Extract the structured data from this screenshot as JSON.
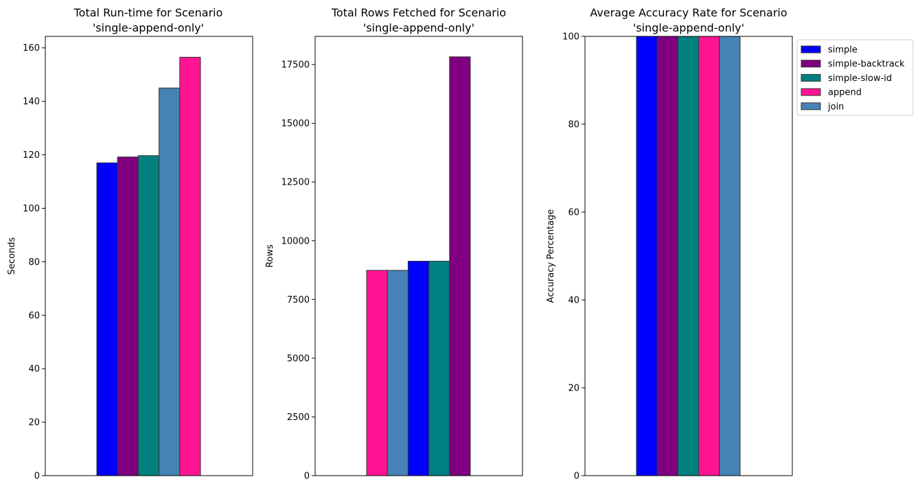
{
  "colors": {
    "simple": "#0000FF",
    "simple-backtrack": "#800080",
    "simple-slow-id": "#008080",
    "append": "#FF1493",
    "join": "#4682B4"
  },
  "chart_data": [
    {
      "type": "bar",
      "title": "Total Run-time for Scenario\n'single-append-only'",
      "title_lines": [
        "Total Run-time for Scenario",
        "'single-append-only'"
      ],
      "xlabel": "",
      "ylabel": "Seconds",
      "ylim": [
        0,
        164.3
      ],
      "yticks": [
        0,
        20,
        40,
        60,
        80,
        100,
        120,
        140,
        160
      ],
      "ytick_labels": [
        "0",
        "20",
        "40",
        "60",
        "80",
        "100",
        "120",
        "140",
        "160"
      ],
      "bars": [
        {
          "series": "simple",
          "value": 117.0
        },
        {
          "series": "simple-backtrack",
          "value": 119.2
        },
        {
          "series": "simple-slow-id",
          "value": 119.7
        },
        {
          "series": "join",
          "value": 145.0
        },
        {
          "series": "append",
          "value": 156.5
        }
      ]
    },
    {
      "type": "bar",
      "title": "Total Rows Fetched for Scenario\n'single-append-only'",
      "title_lines": [
        "Total Rows Fetched for Scenario",
        "'single-append-only'"
      ],
      "xlabel": "",
      "ylabel": "Rows",
      "ylim": [
        0,
        18700
      ],
      "yticks": [
        0,
        2500,
        5000,
        7500,
        10000,
        12500,
        15000,
        17500
      ],
      "ytick_labels": [
        "0",
        "2500",
        "5000",
        "7500",
        "10000",
        "12500",
        "15000",
        "17500"
      ],
      "bars": [
        {
          "series": "append",
          "value": 8740
        },
        {
          "series": "join",
          "value": 8740
        },
        {
          "series": "simple",
          "value": 9130
        },
        {
          "series": "simple-slow-id",
          "value": 9130
        },
        {
          "series": "simple-backtrack",
          "value": 17830
        }
      ]
    },
    {
      "type": "bar",
      "title": "Average Accuracy Rate for Scenario\n'single-append-only'",
      "title_lines": [
        "Average Accuracy Rate for Scenario",
        "'single-append-only'"
      ],
      "xlabel": "",
      "ylabel": "Accuracy Percentage",
      "ylim": [
        0,
        100
      ],
      "yticks": [
        0,
        20,
        40,
        60,
        80,
        100
      ],
      "ytick_labels": [
        "0",
        "20",
        "40",
        "60",
        "80",
        "100"
      ],
      "bars": [
        {
          "series": "simple",
          "value": 100
        },
        {
          "series": "simple-backtrack",
          "value": 100
        },
        {
          "series": "simple-slow-id",
          "value": 100
        },
        {
          "series": "append",
          "value": 100
        },
        {
          "series": "join",
          "value": 100
        }
      ],
      "legend": {
        "placement": "outside upper right",
        "entries": [
          "simple",
          "simple-backtrack",
          "simple-slow-id",
          "append",
          "join"
        ]
      }
    }
  ]
}
